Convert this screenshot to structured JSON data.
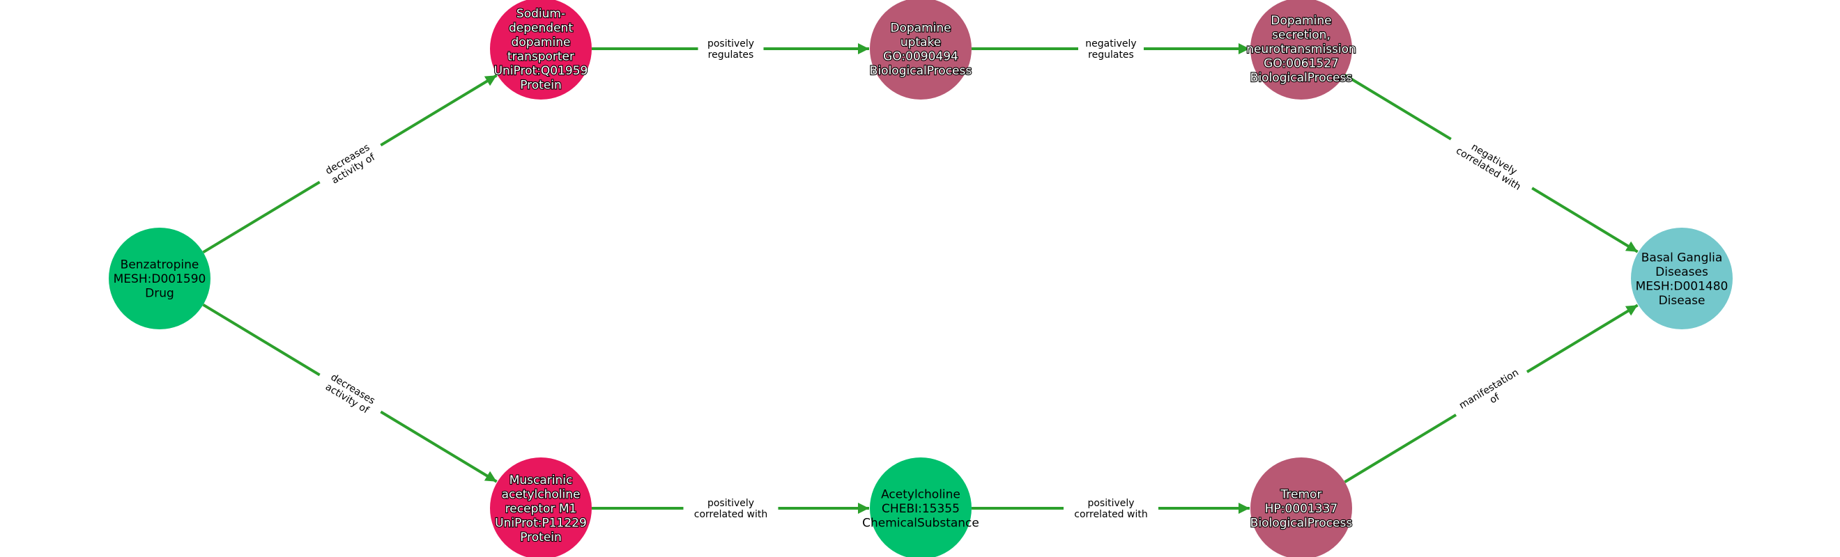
{
  "colors": {
    "edge": "#2ca02c",
    "drug": "#00c06d",
    "protein": "#e8175d",
    "biological_process": "#b85873",
    "chemical_substance": "#00c06d",
    "disease": "#74c8cc"
  },
  "nodes": [
    {
      "id": "benzatropine",
      "lines": [
        "Benzatropine",
        "MESH:D001590",
        "Drug"
      ],
      "category": "drug"
    },
    {
      "id": "dat",
      "lines": [
        "Sodium-",
        "dependent",
        "dopamine",
        "transporter",
        "UniProt:Q01959",
        "Protein"
      ],
      "category": "protein"
    },
    {
      "id": "chrm1",
      "lines": [
        "Muscarinic",
        "acetylcholine",
        "receptor M1",
        "UniProt:P11229",
        "Protein"
      ],
      "category": "protein"
    },
    {
      "id": "dopamine-uptake",
      "lines": [
        "Dopamine",
        "uptake",
        "GO:0090494",
        "BiologicalProcess"
      ],
      "category": "biological_process"
    },
    {
      "id": "acetylcholine",
      "lines": [
        "Acetylcholine",
        "CHEBI:15355",
        "ChemicalSubstance"
      ],
      "category": "chemical_substance"
    },
    {
      "id": "dopamine-secretion",
      "lines": [
        "Dopamine",
        "secretion,",
        "neurotransmission",
        "GO:0061527",
        "BiologicalProcess"
      ],
      "category": "biological_process"
    },
    {
      "id": "tremor",
      "lines": [
        "Tremor",
        "HP:0001337",
        "BiologicalProcess"
      ],
      "category": "biological_process"
    },
    {
      "id": "basal-ganglia",
      "lines": [
        "Basal Ganglia",
        "Diseases",
        "MESH:D001480",
        "Disease"
      ],
      "category": "disease"
    }
  ],
  "edges": [
    {
      "source": "benzatropine",
      "target": "dat",
      "label": [
        "decreases",
        "activity of"
      ]
    },
    {
      "source": "benzatropine",
      "target": "chrm1",
      "label": [
        "decreases",
        "activity of"
      ]
    },
    {
      "source": "dat",
      "target": "dopamine-uptake",
      "label": [
        "positively",
        "regulates"
      ]
    },
    {
      "source": "dopamine-uptake",
      "target": "dopamine-secretion",
      "label": [
        "negatively",
        "regulates"
      ]
    },
    {
      "source": "dopamine-secretion",
      "target": "basal-ganglia",
      "label": [
        "negatively",
        "correlated with"
      ]
    },
    {
      "source": "chrm1",
      "target": "acetylcholine",
      "label": [
        "positively",
        "correlated with"
      ]
    },
    {
      "source": "acetylcholine",
      "target": "tremor",
      "label": [
        "positively",
        "correlated with"
      ]
    },
    {
      "source": "tremor",
      "target": "basal-ganglia",
      "label": [
        "manifestation",
        "of"
      ]
    }
  ]
}
